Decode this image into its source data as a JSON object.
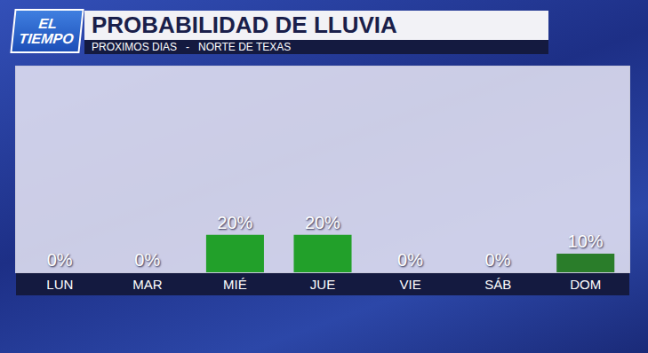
{
  "chart_data": {
    "type": "bar",
    "title": "PROBABILIDAD DE LLUVIA",
    "subtitle": "PROXIMOS DIAS   -   NORTE DE TEXAS",
    "annotations": [
      "EL TIEMPO"
    ],
    "categories": [
      "LUN",
      "MAR",
      "MIÉ",
      "JUE",
      "VIE",
      "SÁB",
      "DOM"
    ],
    "values": [
      0,
      0,
      20,
      20,
      0,
      0,
      10
    ],
    "value_labels": [
      "0%",
      "0%",
      "20%",
      "20%",
      "0%",
      "0%",
      "10%"
    ],
    "colors": [
      "#22a02a",
      "#22a02a",
      "#22a02a",
      "#22a02a",
      "#22a02a",
      "#22a02a",
      "#2a7d2a"
    ],
    "ylim": [
      0,
      110
    ],
    "data_labels": true,
    "tick_labels": "x",
    "grid": false
  }
}
